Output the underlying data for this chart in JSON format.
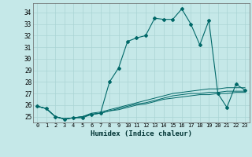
{
  "title": "",
  "xlabel": "Humidex (Indice chaleur)",
  "ylabel": "",
  "xlim": [
    -0.5,
    23.5
  ],
  "ylim": [
    24.5,
    34.8
  ],
  "yticks": [
    25,
    26,
    27,
    28,
    29,
    30,
    31,
    32,
    33,
    34
  ],
  "xticks": [
    0,
    1,
    2,
    3,
    4,
    5,
    6,
    7,
    8,
    9,
    10,
    11,
    12,
    13,
    14,
    15,
    16,
    17,
    18,
    19,
    20,
    21,
    22,
    23
  ],
  "background_color": "#c5e8e8",
  "grid_color": "#aad4d4",
  "line_color": "#006868",
  "series": [
    [
      25.9,
      25.7,
      25.0,
      24.8,
      24.9,
      24.9,
      25.2,
      25.3,
      28.0,
      29.2,
      31.5,
      31.8,
      32.0,
      33.5,
      33.4,
      33.4,
      34.3,
      33.0,
      31.2,
      33.3,
      27.0,
      25.8,
      27.8,
      27.3
    ],
    [
      25.9,
      25.7,
      25.0,
      24.8,
      24.9,
      25.0,
      25.3,
      25.4,
      25.6,
      25.8,
      26.0,
      26.2,
      26.4,
      26.6,
      26.8,
      27.0,
      27.1,
      27.2,
      27.3,
      27.4,
      27.4,
      27.5,
      27.5,
      27.5
    ],
    [
      25.9,
      25.7,
      25.0,
      24.8,
      24.9,
      25.0,
      25.2,
      25.3,
      25.5,
      25.7,
      25.9,
      26.1,
      26.2,
      26.4,
      26.6,
      26.8,
      26.9,
      27.0,
      27.0,
      27.1,
      27.1,
      27.2,
      27.2,
      27.2
    ],
    [
      25.9,
      25.7,
      25.0,
      24.8,
      24.9,
      25.0,
      25.2,
      25.3,
      25.5,
      25.6,
      25.8,
      26.0,
      26.1,
      26.3,
      26.5,
      26.6,
      26.7,
      26.8,
      26.9,
      26.9,
      27.0,
      27.0,
      27.1,
      27.1
    ]
  ]
}
